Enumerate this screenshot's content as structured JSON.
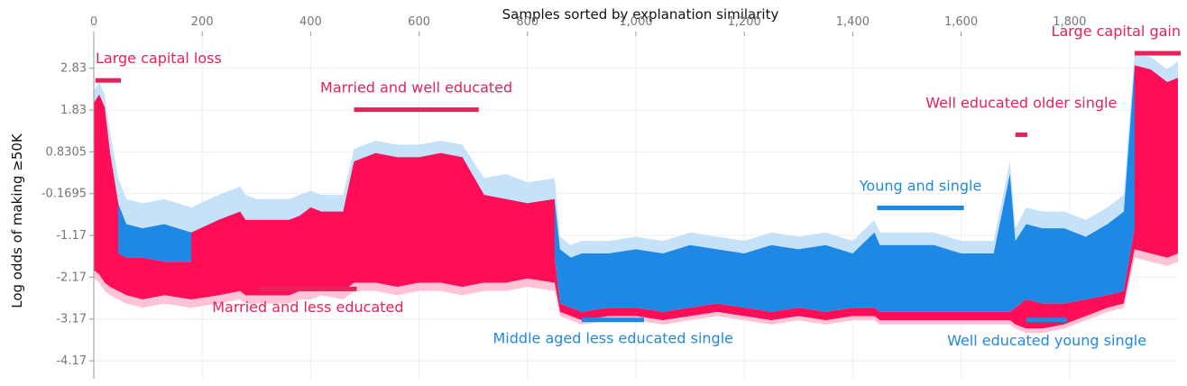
{
  "chart_data": {
    "type": "area",
    "title": "Samples sorted by explanation similarity",
    "xlabel": "",
    "ylabel": "Log odds of making ≥50K",
    "xlim": [
      0,
      2000
    ],
    "ylim": [
      -4.6,
      3.6
    ],
    "x_ticks": [
      0,
      200,
      400,
      600,
      800,
      1000,
      1200,
      1400,
      1600,
      1800
    ],
    "x_tick_labels": [
      "0",
      "200",
      "400",
      "600",
      "800",
      "1,000",
      "1,200",
      "1,400",
      "1,600",
      "1,800"
    ],
    "y_ticks": [
      2.83,
      1.83,
      0.8305,
      -0.1695,
      -1.17,
      -2.17,
      -3.17,
      -4.17
    ],
    "y_tick_labels": [
      "2.83",
      "1.83",
      "0.8305",
      "-0.1695",
      "-1.17",
      "-2.17",
      "-3.17",
      "-4.17"
    ],
    "grid": true,
    "colors": {
      "positive": "#ff0d57",
      "negative": "#1e88e5",
      "positive_light": "#ffc3d5",
      "negative_light": "#c6e2f8",
      "grid": "#eeeeee",
      "axis": "#999999",
      "pink_label": "#e8215a",
      "blue_label": "#1e88e5"
    },
    "series": [
      {
        "x": [
          0,
          10,
          20,
          30,
          45,
          60,
          90,
          130,
          180,
          230,
          270,
          280,
          300,
          360,
          380,
          400,
          420,
          460,
          480,
          520,
          560,
          600,
          640,
          680,
          720,
          760,
          800,
          850,
          860,
          880,
          900,
          950,
          1000,
          1050,
          1100,
          1150,
          1200,
          1250,
          1300,
          1350,
          1400,
          1440,
          1450,
          1500,
          1550,
          1600,
          1660,
          1690,
          1700,
          1720,
          1750,
          1790,
          1830,
          1870,
          1900,
          1920,
          1950,
          1980,
          2000
        ],
        "top": [
          2.3,
          2.5,
          2.2,
          1.3,
          0.2,
          -0.3,
          -0.4,
          -0.3,
          -0.5,
          -0.2,
          0.0,
          -0.2,
          -0.3,
          -0.3,
          -0.2,
          -0.1,
          -0.2,
          -0.2,
          0.9,
          1.1,
          1.0,
          1.0,
          1.1,
          1.0,
          0.2,
          0.3,
          0.1,
          0.2,
          -1.2,
          -1.4,
          -1.3,
          -1.3,
          -1.2,
          -1.3,
          -1.1,
          -1.2,
          -1.3,
          -1.1,
          -1.2,
          -1.1,
          -1.3,
          -0.8,
          -1.1,
          -1.1,
          -1.1,
          -1.3,
          -1.3,
          0.6,
          -1.0,
          -0.5,
          -0.6,
          -0.6,
          -0.8,
          -0.5,
          -0.2,
          3.2,
          3.1,
          2.8,
          3.0
        ],
        "mid": [
          2.0,
          2.2,
          1.9,
          0.8,
          -0.4,
          -0.9,
          -1.0,
          -0.9,
          -1.1,
          -0.8,
          -0.6,
          -0.8,
          -0.8,
          -0.8,
          -0.7,
          -0.5,
          -0.6,
          -0.6,
          0.6,
          0.8,
          0.7,
          0.7,
          0.8,
          0.7,
          -0.2,
          -0.3,
          -0.4,
          -0.3,
          -1.5,
          -1.7,
          -1.6,
          -1.6,
          -1.5,
          -1.6,
          -1.4,
          -1.5,
          -1.6,
          -1.4,
          -1.5,
          -1.4,
          -1.6,
          -1.1,
          -1.4,
          -1.4,
          -1.4,
          -1.6,
          -1.6,
          0.3,
          -1.3,
          -0.9,
          -1.0,
          -1.0,
          -1.2,
          -0.9,
          -0.6,
          2.9,
          2.8,
          2.5,
          2.6
        ],
        "zero": [
          -1.3,
          -1.4,
          -1.5,
          -1.6,
          -1.6,
          -1.7,
          -1.7,
          -1.8,
          -1.8,
          -1.7,
          -1.7,
          -1.7,
          -1.8,
          -1.8,
          -1.8,
          -1.7,
          -1.7,
          -1.8,
          -1.7,
          -1.7,
          -1.8,
          -1.7,
          -1.7,
          -1.8,
          -1.7,
          -1.7,
          -1.7,
          -1.7,
          -2.8,
          -2.9,
          -3.0,
          -2.9,
          -2.9,
          -3.0,
          -2.9,
          -2.8,
          -2.9,
          -3.0,
          -2.9,
          -3.0,
          -2.9,
          -2.9,
          -3.0,
          -3.0,
          -3.0,
          -3.0,
          -3.0,
          -3.0,
          -2.9,
          -2.7,
          -2.8,
          -2.8,
          -2.7,
          -2.6,
          -2.5,
          -1.0,
          -1.1,
          -1.2,
          -1.1
        ],
        "low": [
          -2.0,
          -2.1,
          -2.3,
          -2.4,
          -2.5,
          -2.6,
          -2.7,
          -2.6,
          -2.7,
          -2.6,
          -2.5,
          -2.6,
          -2.6,
          -2.6,
          -2.5,
          -2.5,
          -2.4,
          -2.5,
          -2.3,
          -2.3,
          -2.4,
          -2.3,
          -2.3,
          -2.4,
          -2.3,
          -2.3,
          -2.2,
          -2.3,
          -3.0,
          -3.1,
          -3.2,
          -3.1,
          -3.1,
          -3.2,
          -3.1,
          -3.0,
          -3.1,
          -3.2,
          -3.1,
          -3.2,
          -3.1,
          -3.1,
          -3.2,
          -3.2,
          -3.2,
          -3.2,
          -3.2,
          -3.2,
          -3.3,
          -3.4,
          -3.4,
          -3.3,
          -3.1,
          -2.9,
          -2.8,
          -1.5,
          -1.6,
          -1.7,
          -1.6
        ],
        "bottom": [
          -2.2,
          -2.3,
          -2.5,
          -2.6,
          -2.7,
          -2.8,
          -2.9,
          -2.8,
          -2.9,
          -2.8,
          -2.7,
          -2.8,
          -2.8,
          -2.8,
          -2.7,
          -2.7,
          -2.6,
          -2.7,
          -2.5,
          -2.5,
          -2.6,
          -2.5,
          -2.5,
          -2.6,
          -2.5,
          -2.5,
          -2.4,
          -2.5,
          -3.1,
          -3.2,
          -3.3,
          -3.2,
          -3.2,
          -3.3,
          -3.2,
          -3.1,
          -3.2,
          -3.3,
          -3.2,
          -3.3,
          -3.2,
          -3.2,
          -3.3,
          -3.3,
          -3.3,
          -3.3,
          -3.3,
          -3.3,
          -3.4,
          -3.5,
          -3.5,
          -3.4,
          -3.2,
          -3.0,
          -2.9,
          -1.7,
          -1.8,
          -1.9,
          -1.8
        ]
      }
    ],
    "annotations": [
      {
        "text": "Large capital loss",
        "color": "pink",
        "x0": 3,
        "x1": 50,
        "bar_y": 2.55,
        "label_y": 2.95,
        "label_x": 3,
        "align": "start"
      },
      {
        "text": "Married and well educated",
        "color": "pink",
        "x0": 480,
        "x1": 710,
        "bar_y": 1.85,
        "label_y": 2.25,
        "label_x": 595,
        "align": "middle"
      },
      {
        "text": "Married and less educated",
        "color": "pink",
        "x0": 305,
        "x1": 485,
        "bar_y": -2.44,
        "label_y": -3.0,
        "label_x": 395,
        "align": "middle"
      },
      {
        "text": "Middle aged less educated single",
        "color": "blue",
        "x0": 900,
        "x1": 1015,
        "bar_y": -3.18,
        "label_y": -3.75,
        "label_x": 958,
        "align": "middle"
      },
      {
        "text": "Young and single",
        "color": "blue",
        "x0": 1445,
        "x1": 1605,
        "bar_y": -0.5,
        "label_y": -0.1,
        "label_x": 1525,
        "align": "middle"
      },
      {
        "text": "Well educated older single",
        "color": "pink",
        "x0": 1700,
        "x1": 1722,
        "bar_y": 1.25,
        "label_y": 1.88,
        "label_x": 1711,
        "align": "middle"
      },
      {
        "text": "Well educated young single",
        "color": "blue",
        "x0": 1720,
        "x1": 1795,
        "bar_y": -3.18,
        "label_y": -3.8,
        "label_x": 1758,
        "align": "middle"
      },
      {
        "text": "Large capital gain",
        "color": "pink",
        "x0": 1920,
        "x1": 2005,
        "bar_y": 3.2,
        "label_y": 3.6,
        "label_x": 2005,
        "align": "end"
      }
    ]
  }
}
